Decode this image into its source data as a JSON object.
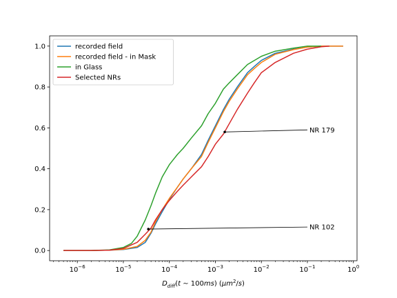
{
  "chart_data": {
    "type": "line",
    "title": "",
    "xlabel": "D_diff(t ~ 100ms) (μm²/s)",
    "ylabel": "",
    "x_scale": "log",
    "xlim": [
      2.5e-07,
      1.2
    ],
    "ylim": [
      -0.05,
      1.05
    ],
    "x_ticks": [
      1e-06,
      1e-05,
      0.0001,
      0.001,
      0.01,
      0.1,
      1
    ],
    "x_tick_labels": [
      {
        "base": "10",
        "exp": "−6"
      },
      {
        "base": "10",
        "exp": "−5"
      },
      {
        "base": "10",
        "exp": "−4"
      },
      {
        "base": "10",
        "exp": "−3"
      },
      {
        "base": "10",
        "exp": "−2"
      },
      {
        "base": "10",
        "exp": "−1"
      },
      {
        "base": "10",
        "exp": "0"
      }
    ],
    "y_ticks": [
      0.0,
      0.2,
      0.4,
      0.6,
      0.8,
      1.0
    ],
    "y_tick_labels": [
      "0.0",
      "0.2",
      "0.4",
      "0.6",
      "0.8",
      "1.0"
    ],
    "grid": false,
    "legend_position": "top-left",
    "series": [
      {
        "name": "recorded field",
        "color": "#1f77b4",
        "x": [
          5e-07,
          2e-06,
          5e-06,
          1e-05,
          2e-05,
          3e-05,
          4e-05,
          5e-05,
          7e-05,
          0.0001,
          0.00015,
          0.0002,
          0.0003,
          0.0005,
          0.0007,
          0.001,
          0.0015,
          0.002,
          0.003,
          0.005,
          0.007,
          0.01,
          0.02,
          0.05,
          0.1,
          0.2,
          0.6
        ],
        "y": [
          0.0,
          0.0,
          0.002,
          0.005,
          0.015,
          0.04,
          0.085,
          0.13,
          0.19,
          0.25,
          0.31,
          0.35,
          0.4,
          0.47,
          0.54,
          0.61,
          0.69,
          0.74,
          0.8,
          0.87,
          0.9,
          0.93,
          0.965,
          0.985,
          0.995,
          1.0,
          1.0
        ]
      },
      {
        "name": "recorded field - in Mask",
        "color": "#ff7f0e",
        "x": [
          5e-07,
          2e-06,
          5e-06,
          1e-05,
          2e-05,
          3e-05,
          4e-05,
          5e-05,
          7e-05,
          0.0001,
          0.00015,
          0.0002,
          0.0003,
          0.0005,
          0.0007,
          0.001,
          0.0015,
          0.002,
          0.003,
          0.005,
          0.007,
          0.01,
          0.02,
          0.05,
          0.1,
          0.2,
          0.6
        ],
        "y": [
          0.0,
          0.0,
          0.002,
          0.006,
          0.02,
          0.05,
          0.09,
          0.14,
          0.2,
          0.255,
          0.31,
          0.35,
          0.4,
          0.46,
          0.53,
          0.6,
          0.68,
          0.73,
          0.79,
          0.86,
          0.89,
          0.92,
          0.96,
          0.983,
          0.995,
          1.0,
          1.0
        ]
      },
      {
        "name": "in Glass",
        "color": "#2ca02c",
        "x": [
          5e-07,
          2e-06,
          5e-06,
          1e-05,
          1.5e-05,
          2e-05,
          3e-05,
          4e-05,
          5e-05,
          7e-05,
          0.0001,
          0.00015,
          0.0002,
          0.0003,
          0.0005,
          0.0007,
          0.001,
          0.0015,
          0.002,
          0.003,
          0.005,
          0.01,
          0.02,
          0.05,
          0.1,
          0.2
        ],
        "y": [
          0.0,
          0.0,
          0.003,
          0.015,
          0.035,
          0.07,
          0.15,
          0.22,
          0.28,
          0.36,
          0.42,
          0.47,
          0.5,
          0.55,
          0.61,
          0.67,
          0.72,
          0.79,
          0.82,
          0.86,
          0.91,
          0.95,
          0.975,
          0.99,
          1.0,
          1.0
        ]
      },
      {
        "name": "Selected NRs",
        "color": "#d62728",
        "x": [
          5e-07,
          2e-06,
          5e-06,
          1e-05,
          2e-05,
          3e-05,
          4e-05,
          5e-05,
          7e-05,
          0.0001,
          0.00015,
          0.0002,
          0.0003,
          0.0005,
          0.0007,
          0.001,
          0.0015,
          0.002,
          0.003,
          0.005,
          0.007,
          0.01,
          0.02,
          0.05,
          0.1,
          0.2,
          0.3
        ],
        "y": [
          0.0,
          0.0,
          0.002,
          0.01,
          0.04,
          0.08,
          0.11,
          0.15,
          0.2,
          0.245,
          0.29,
          0.32,
          0.36,
          0.41,
          0.46,
          0.52,
          0.57,
          0.62,
          0.69,
          0.77,
          0.82,
          0.87,
          0.92,
          0.965,
          0.985,
          0.997,
          1.0
        ]
      }
    ],
    "annotations": [
      {
        "text": "NR 179",
        "point_x": 0.0016,
        "point_y": 0.58,
        "text_x": 0.1,
        "text_y": 0.59
      },
      {
        "text": "NR 102",
        "point_x": 3.5e-05,
        "point_y": 0.105,
        "text_x": 0.1,
        "text_y": 0.115
      }
    ]
  }
}
